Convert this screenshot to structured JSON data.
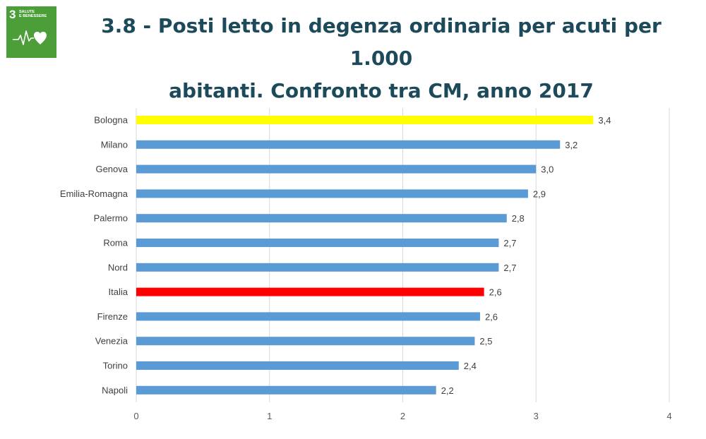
{
  "logo": {
    "number": "3",
    "line1": "SALUTE",
    "line2": "E BENESSERE",
    "icon": "heartbeat-heart-icon",
    "color": "#4c9f38"
  },
  "title": {
    "line1": "3.8 - Posti letto in degenza ordinaria per acuti per 1.000",
    "line2": "abitanti. Confronto tra CM, anno 2017"
  },
  "chart_data": {
    "type": "bar",
    "orientation": "horizontal",
    "categories": [
      "Bologna",
      "Milano",
      "Genova",
      "Emilia-Romagna",
      "Palermo",
      "Roma",
      "Nord",
      "Italia",
      "Firenze",
      "Venezia",
      "Torino",
      "Napoli"
    ],
    "values": [
      3.43,
      3.18,
      3.0,
      2.94,
      2.78,
      2.72,
      2.72,
      2.61,
      2.58,
      2.54,
      2.42,
      2.25
    ],
    "data_labels": [
      "3,4",
      "3,2",
      "3,0",
      "2,9",
      "2,8",
      "2,7",
      "2,7",
      "2,6",
      "2,6",
      "2,5",
      "2,4",
      "2,2"
    ],
    "bar_colors": [
      "#ffff00",
      "#5b9bd5",
      "#5b9bd5",
      "#5b9bd5",
      "#5b9bd5",
      "#5b9bd5",
      "#5b9bd5",
      "#ff0000",
      "#5b9bd5",
      "#5b9bd5",
      "#5b9bd5",
      "#5b9bd5"
    ],
    "xlim": [
      0,
      4
    ],
    "xticks": [
      0,
      1,
      2,
      3,
      4
    ],
    "xtick_labels": [
      "0",
      "1",
      "2",
      "3",
      "4"
    ],
    "grid": true,
    "title": "",
    "xlabel": "",
    "ylabel": ""
  }
}
